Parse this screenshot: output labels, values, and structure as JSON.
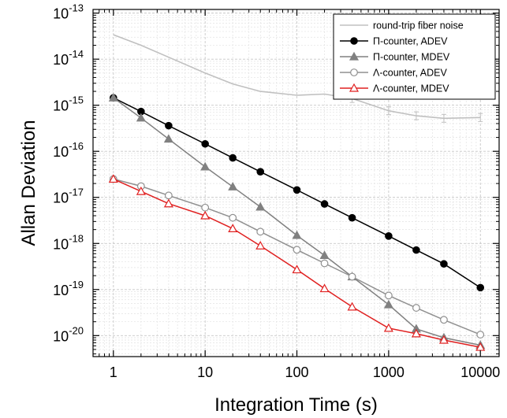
{
  "chart_data": {
    "type": "line",
    "title": "",
    "xlabel": "Integration Time (s)",
    "ylabel": "Allan Deviation",
    "x_scale": "log",
    "y_scale": "log",
    "xlim": [
      0.6,
      16000
    ],
    "ylim": [
      3.5e-21,
      1.2e-13
    ],
    "x_ticks": [
      {
        "value": 1,
        "label": "1"
      },
      {
        "value": 10,
        "label": "10"
      },
      {
        "value": 100,
        "label": "100"
      },
      {
        "value": 1000,
        "label": "1000"
      },
      {
        "value": 10000,
        "label": "10000"
      }
    ],
    "y_ticks": [
      {
        "value": 1e-13,
        "base": "10",
        "exp": "-13"
      },
      {
        "value": 1e-14,
        "base": "10",
        "exp": "-14"
      },
      {
        "value": 1e-15,
        "base": "10",
        "exp": "-15"
      },
      {
        "value": 1e-16,
        "base": "10",
        "exp": "-16"
      },
      {
        "value": 1e-17,
        "base": "10",
        "exp": "-17"
      },
      {
        "value": 1e-18,
        "base": "10",
        "exp": "-18"
      },
      {
        "value": 1e-19,
        "base": "10",
        "exp": "-19"
      },
      {
        "value": 1e-20,
        "base": "10",
        "exp": "-20"
      }
    ],
    "grid": true,
    "legend_position": "top-right",
    "series": [
      {
        "name": "round-trip fiber noise",
        "color": "#c0c0c0",
        "marker": "none",
        "x": [
          1,
          2,
          4,
          10,
          20,
          40,
          100,
          200,
          400,
          1000,
          2000,
          4000,
          10000
        ],
        "y": [
          3.4e-14,
          2e-14,
          1.1e-14,
          5e-15,
          2.9e-15,
          2e-15,
          1.65e-15,
          1.75e-15,
          1.4e-15,
          7.6e-16,
          5.9e-16,
          5.2e-16,
          5.4e-16
        ]
      },
      {
        "name": "Π-counter, ADEV",
        "color": "#000000",
        "marker": "circle-filled",
        "x": [
          1,
          2,
          4,
          10,
          20,
          40,
          100,
          200,
          400,
          1000,
          2000,
          4000,
          10000
        ],
        "y": [
          1.45e-15,
          7.3e-16,
          3.6e-16,
          1.45e-16,
          7.2e-17,
          3.6e-17,
          1.45e-17,
          7.2e-18,
          3.6e-18,
          1.45e-18,
          7.2e-19,
          3.6e-19,
          1.1e-19
        ]
      },
      {
        "name": "Π-counter, MDEV",
        "color": "#808080",
        "marker": "triangle-filled",
        "x": [
          1,
          2,
          4,
          10,
          20,
          40,
          100,
          200,
          400,
          1000,
          2000,
          4000,
          10000
        ],
        "y": [
          1.45e-15,
          5.3e-16,
          1.85e-16,
          4.6e-17,
          1.7e-17,
          6.2e-18,
          1.5e-18,
          5.5e-19,
          1.9e-19,
          4.7e-20,
          1.4e-20,
          9e-21,
          6.2e-21
        ]
      },
      {
        "name": "Λ-counter, ADEV",
        "color": "#909090",
        "marker": "circle-open",
        "x": [
          1,
          2,
          4,
          10,
          20,
          40,
          100,
          200,
          400,
          1000,
          2000,
          4000,
          10000
        ],
        "y": [
          2.5e-17,
          1.75e-17,
          1.1e-17,
          6e-18,
          3.6e-18,
          1.8e-18,
          7.3e-19,
          3.7e-19,
          1.9e-19,
          7.4e-20,
          4e-20,
          2.2e-20,
          1.05e-20
        ]
      },
      {
        "name": "Λ-counter, MDEV",
        "color": "#e02020",
        "marker": "triangle-open",
        "x": [
          1,
          2,
          4,
          10,
          20,
          40,
          100,
          200,
          400,
          1000,
          2000,
          4000,
          10000
        ],
        "y": [
          2.5e-17,
          1.35e-17,
          7.3e-18,
          4e-18,
          2.1e-18,
          8.9e-19,
          2.7e-19,
          1.05e-19,
          4.2e-20,
          1.45e-20,
          1.1e-20,
          8e-21,
          5.6e-21
        ]
      }
    ]
  }
}
